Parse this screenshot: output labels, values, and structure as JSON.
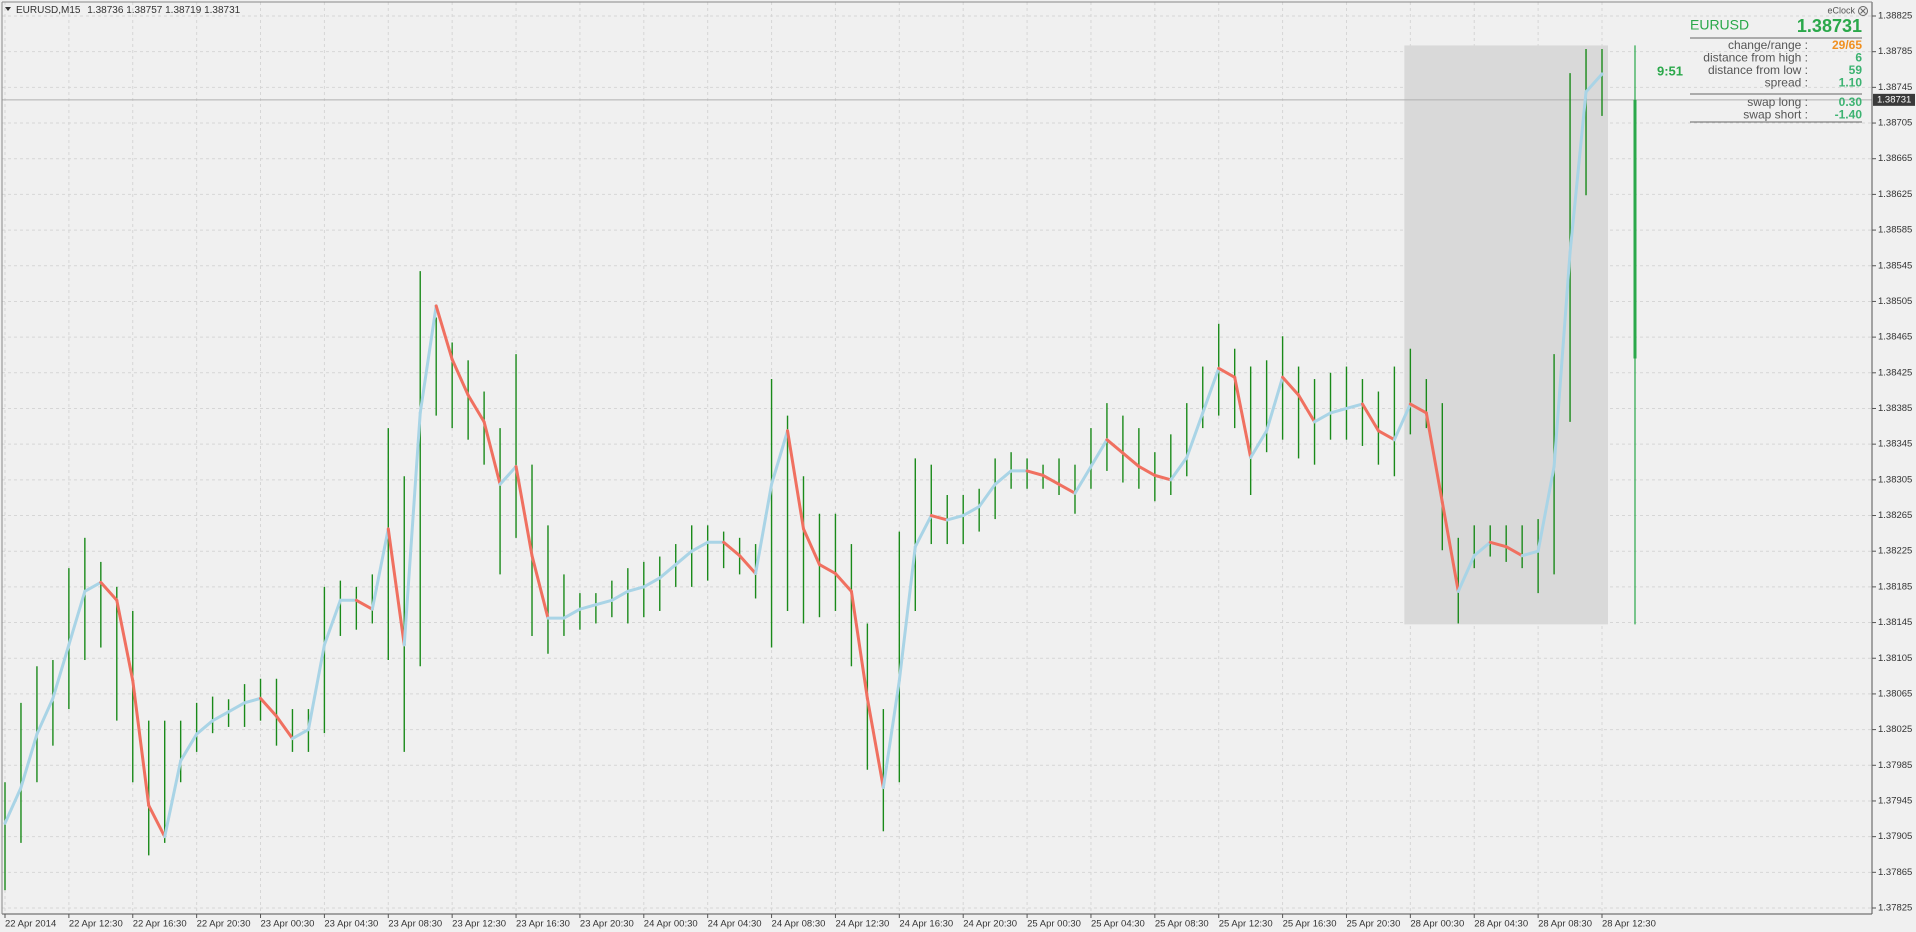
{
  "chart_data": {
    "type": "ohlc",
    "title": "EURUSD,M15",
    "header_ohlc": [
      1.38736,
      1.38757,
      1.38719,
      1.38731
    ],
    "current_price": 1.38731,
    "timer": "9:51",
    "bar_color": "#1a8a1a",
    "categories": [
      "22 Apr 2014",
      null,
      null,
      null,
      "22 Apr 12:30",
      null,
      null,
      null,
      "22 Apr 16:30",
      null,
      null,
      null,
      "22 Apr 20:30",
      null,
      null,
      null,
      "23 Apr 00:30",
      null,
      null,
      null,
      "23 Apr 04:30",
      null,
      null,
      null,
      "23 Apr 08:30",
      null,
      null,
      null,
      "23 Apr 12:30",
      null,
      null,
      null,
      "23 Apr 16:30",
      null,
      null,
      null,
      "23 Apr 20:30",
      null,
      null,
      null,
      "24 Apr 00:30",
      null,
      null,
      null,
      "24 Apr 04:30",
      null,
      null,
      null,
      "24 Apr 08:30",
      null,
      null,
      null,
      "24 Apr 12:30",
      null,
      null,
      null,
      "24 Apr 16:30",
      null,
      null,
      null,
      "24 Apr 20:30",
      null,
      null,
      null,
      "25 Apr 00:30",
      null,
      null,
      null,
      "25 Apr 04:30",
      null,
      null,
      null,
      "25 Apr 08:30",
      null,
      null,
      null,
      "25 Apr 12:30",
      null,
      null,
      null,
      "25 Apr 16:30",
      null,
      null,
      null,
      "25 Apr 20:30",
      null,
      null,
      null,
      "28 Apr 00:30",
      null,
      null,
      null,
      "28 Apr 04:30",
      null,
      null,
      null,
      "28 Apr 08:30",
      null,
      null,
      null,
      "28 Apr 12:30"
    ],
    "high": [
      1.37966,
      1.38055,
      1.38096,
      1.38103,
      1.38206,
      1.3824,
      1.38213,
      1.38185,
      1.38158,
      1.38035,
      1.38035,
      1.38035,
      1.38055,
      1.38062,
      1.38059,
      1.38076,
      1.38082,
      1.38082,
      1.38048,
      1.38048,
      1.38185,
      1.38192,
      1.38185,
      1.38199,
      1.38363,
      1.38309,
      1.38539,
      1.38487,
      1.38459,
      1.38439,
      1.38404,
      1.38363,
      1.38446,
      1.38322,
      1.38254,
      1.38199,
      1.38178,
      1.38178,
      1.38192,
      1.38206,
      1.38213,
      1.38219,
      1.38233,
      1.38254,
      1.38254,
      1.38247,
      1.3824,
      1.38233,
      1.38418,
      1.38377,
      1.38309,
      1.38267,
      1.38267,
      1.38233,
      1.38144,
      1.38048,
      1.38247,
      1.38329,
      1.38322,
      1.38288,
      1.38288,
      1.38295,
      1.38329,
      1.38336,
      1.38329,
      1.38322,
      1.38329,
      1.38322,
      1.38363,
      1.38391,
      1.38377,
      1.38363,
      1.38336,
      1.38356,
      1.38391,
      1.38432,
      1.3848,
      1.38452,
      1.38432,
      1.38439,
      1.38466,
      1.38432,
      1.38418,
      1.38425,
      1.38432,
      1.38418,
      1.38404,
      1.38432,
      1.38452,
      1.38418,
      1.38391,
      1.3824,
      1.38254,
      1.38254,
      1.38254,
      1.38254,
      1.38261,
      1.38446,
      1.38761,
      1.38788,
      1.38788
    ],
    "low": [
      1.37845,
      1.37898,
      1.37966,
      1.38007,
      1.38048,
      1.38103,
      1.38117,
      1.38035,
      1.37966,
      1.37884,
      1.37898,
      1.37966,
      1.38,
      1.38021,
      1.38028,
      1.38028,
      1.38035,
      1.38007,
      1.38,
      1.38,
      1.38021,
      1.3813,
      1.38137,
      1.38144,
      1.38103,
      1.38,
      1.38096,
      1.38377,
      1.38363,
      1.3835,
      1.38322,
      1.38199,
      1.3824,
      1.3813,
      1.3811,
      1.3813,
      1.38137,
      1.38144,
      1.38151,
      1.38144,
      1.38151,
      1.38158,
      1.38185,
      1.38185,
      1.38192,
      1.38206,
      1.38199,
      1.38172,
      1.38117,
      1.38158,
      1.38144,
      1.38151,
      1.38158,
      1.38096,
      1.3798,
      1.37911,
      1.37966,
      1.38158,
      1.38233,
      1.38233,
      1.38233,
      1.38247,
      1.38261,
      1.38295,
      1.38295,
      1.38295,
      1.38288,
      1.38267,
      1.38295,
      1.38315,
      1.38302,
      1.38295,
      1.38281,
      1.38288,
      1.38309,
      1.38363,
      1.38377,
      1.38363,
      1.38288,
      1.38336,
      1.3835,
      1.38329,
      1.38322,
      1.3835,
      1.3835,
      1.38343,
      1.38322,
      1.38309,
      1.38356,
      1.38363,
      1.38226,
      1.38144,
      1.38206,
      1.38219,
      1.38213,
      1.38206,
      1.38178,
      1.38199,
      1.3837,
      1.38624,
      1.38713
    ],
    "ma": {
      "up_color": "#a9d4e6",
      "down_color": "#f07060",
      "values": [
        1.3792,
        1.3796,
        1.3802,
        1.3806,
        1.3812,
        1.3818,
        1.3819,
        1.3817,
        1.3808,
        1.3794,
        1.37905,
        1.3799,
        1.3802,
        1.38035,
        1.38045,
        1.38055,
        1.3806,
        1.3804,
        1.38015,
        1.38025,
        1.3812,
        1.3817,
        1.3817,
        1.3816,
        1.3825,
        1.3812,
        1.3838,
        1.385,
        1.3844,
        1.384,
        1.3837,
        1.383,
        1.3832,
        1.3822,
        1.3815,
        1.3815,
        1.3816,
        1.38165,
        1.3817,
        1.3818,
        1.38185,
        1.38195,
        1.3821,
        1.38225,
        1.38235,
        1.38235,
        1.3822,
        1.382,
        1.383,
        1.3836,
        1.3825,
        1.3821,
        1.382,
        1.3818,
        1.3806,
        1.3796,
        1.3808,
        1.3823,
        1.38265,
        1.3826,
        1.38265,
        1.38275,
        1.383,
        1.38315,
        1.38315,
        1.3831,
        1.383,
        1.3829,
        1.3832,
        1.3835,
        1.38335,
        1.3832,
        1.3831,
        1.38305,
        1.3833,
        1.3838,
        1.3843,
        1.3842,
        1.3833,
        1.3836,
        1.3842,
        1.384,
        1.3837,
        1.3838,
        1.38385,
        1.3839,
        1.3836,
        1.3835,
        1.3839,
        1.3838,
        1.3828,
        1.3818,
        1.3822,
        1.38235,
        1.3823,
        1.3822,
        1.38225,
        1.3832,
        1.3856,
        1.3874,
        1.3876
      ]
    },
    "range_box": {
      "first_bar": 88,
      "high": 1.38792,
      "low": 1.38143,
      "day_open": 1.38441,
      "color": "#d9d9d9",
      "line_color": "#2aa84a"
    },
    "ylim": [
      1.37825,
      1.38825
    ],
    "yticks": [
      1.38825,
      1.38785,
      1.38745,
      1.38705,
      1.38665,
      1.38625,
      1.38585,
      1.38545,
      1.38505,
      1.38465,
      1.38425,
      1.38385,
      1.38345,
      1.38305,
      1.38265,
      1.38225,
      1.38185,
      1.38145,
      1.38105,
      1.38065,
      1.38025,
      1.37985,
      1.37945,
      1.37905,
      1.37865,
      1.37825
    ],
    "grid": true
  },
  "info_panel": {
    "indicator": "eClock",
    "symbol": "EURUSD",
    "rows": [
      [
        "change/range :",
        "29/65"
      ],
      [
        "distance from high :",
        6
      ],
      [
        "distance from low :",
        59
      ],
      [
        "spread :",
        "1.10"
      ]
    ],
    "swap_rows": [
      [
        "swap long :",
        "0.30"
      ],
      [
        "swap short :",
        "-1.40"
      ]
    ]
  }
}
